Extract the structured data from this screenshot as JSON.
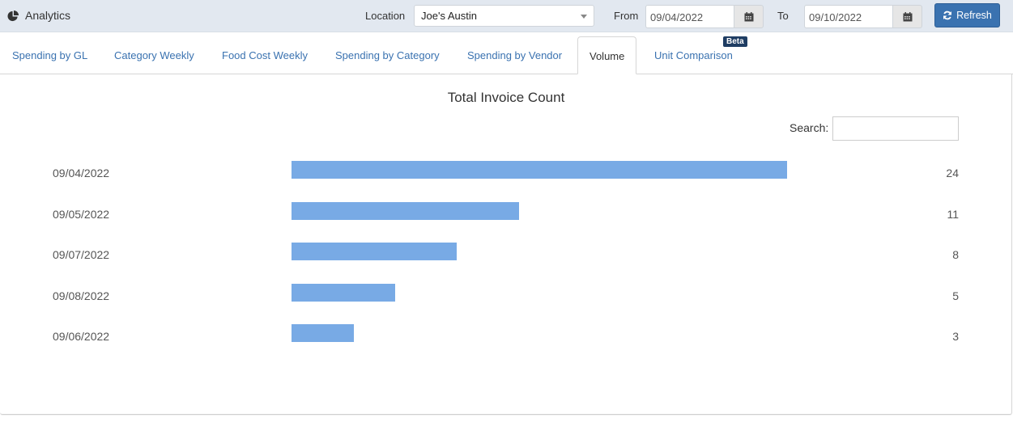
{
  "header": {
    "app_title": "Analytics",
    "app_icon": "pie-chart-icon",
    "location_label": "Location",
    "location_value": "Joe's Austin",
    "from_label": "From",
    "from_value": "09/04/2022",
    "to_label": "To",
    "to_value": "09/10/2022",
    "refresh_label": "Refresh"
  },
  "tabs": [
    {
      "label": "Spending by GL",
      "active": false
    },
    {
      "label": "Category Weekly",
      "active": false
    },
    {
      "label": "Food Cost Weekly",
      "active": false
    },
    {
      "label": "Spending by Category",
      "active": false
    },
    {
      "label": "Spending by Vendor",
      "active": false
    },
    {
      "label": "Volume",
      "active": true
    },
    {
      "label": "Unit Comparison",
      "active": false,
      "badge": "Beta"
    }
  ],
  "panel": {
    "search_label": "Search:",
    "search_value": ""
  },
  "colors": {
    "bar": "#78aae5",
    "accent": "#3a72b0",
    "badge": "#1f3d63",
    "topbar": "#e2e8f0"
  },
  "chart_data": {
    "type": "bar",
    "orientation": "horizontal",
    "title": "Total Invoice Count",
    "categories": [
      "09/04/2022",
      "09/05/2022",
      "09/07/2022",
      "09/08/2022",
      "09/06/2022"
    ],
    "values": [
      24,
      11,
      8,
      5,
      3
    ],
    "xlabel": "",
    "ylabel": "",
    "grid": false,
    "legend": null,
    "value_labels": "right-aligned column"
  }
}
